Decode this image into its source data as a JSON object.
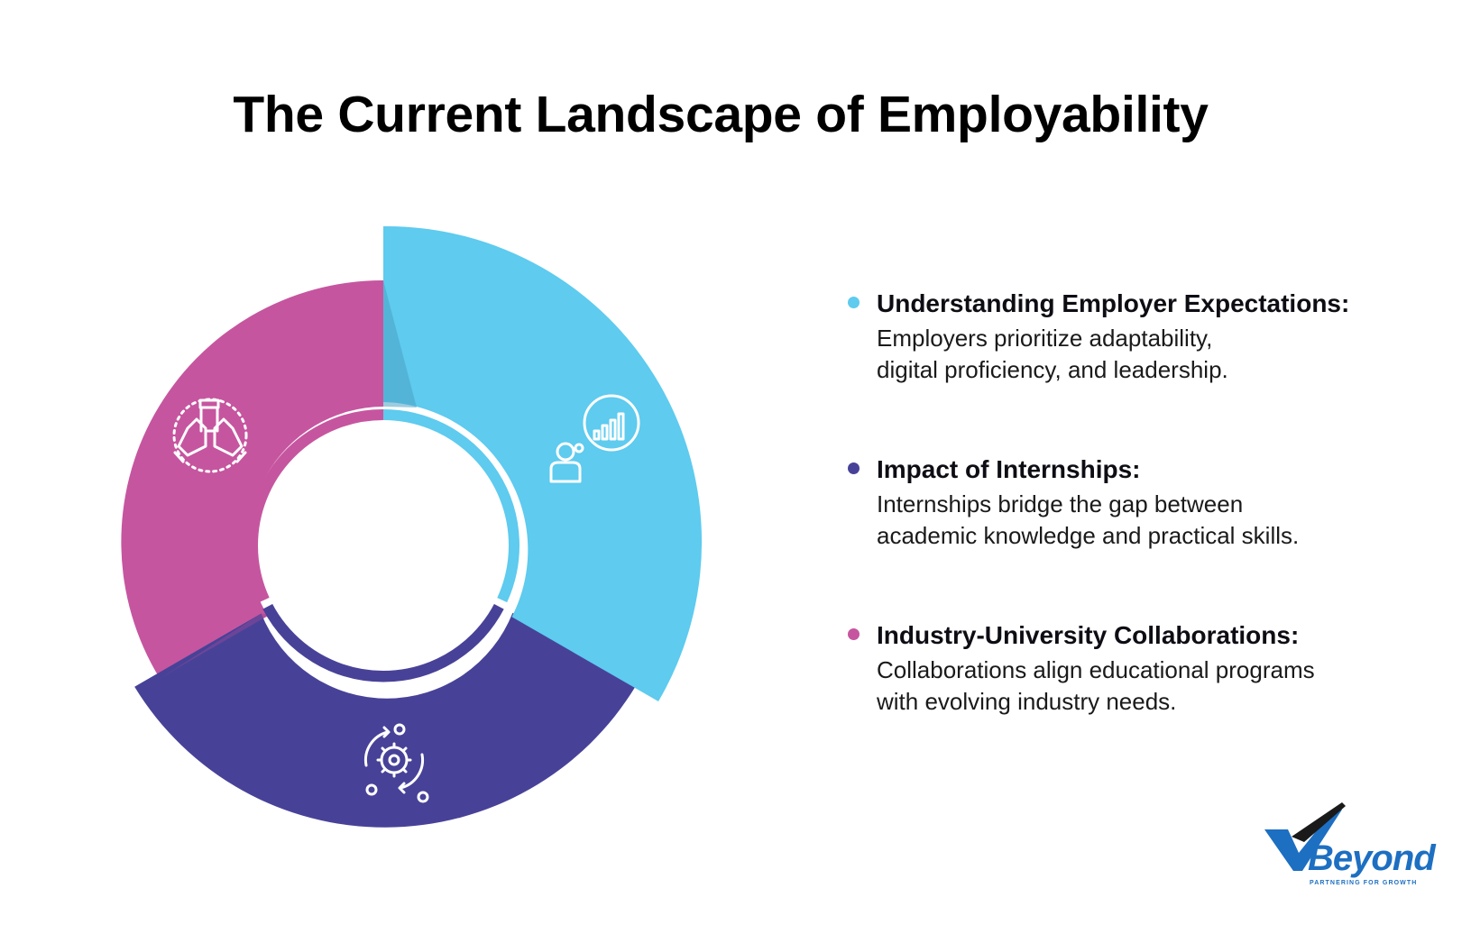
{
  "title": "The Current Landscape of Employability",
  "colors": {
    "cyan": "#5ecbef",
    "indigo": "#474298",
    "magenta": "#c6559f",
    "logo_blue": "#1d6fc2"
  },
  "segments": [
    {
      "label": "Understanding Employer Expectations",
      "color": "#5ecbef",
      "icon": "person-thought-chart-icon"
    },
    {
      "label": "Impact of Internships",
      "color": "#474298",
      "icon": "gear-cycle-icon"
    },
    {
      "label": "Industry-University Collaborations",
      "color": "#c6559f",
      "icon": "hands-together-icon"
    }
  ],
  "items": [
    {
      "heading": "Understanding Employer Expectations:",
      "line1": "Employers prioritize adaptability,",
      "line2": "digital proficiency, and leadership.",
      "color": "#5ecbef"
    },
    {
      "heading": "Impact of Internships:",
      "line1": "Internships bridge the gap between",
      "line2": "academic knowledge and practical skills.",
      "color": "#474298"
    },
    {
      "heading": "Industry-University Collaborations:",
      "line1": "Collaborations align educational programs",
      "line2": "with evolving industry needs.",
      "color": "#c6559f"
    }
  ],
  "logo": {
    "name": "Beyond",
    "tagline": "PARTNERING FOR GROWTH"
  }
}
